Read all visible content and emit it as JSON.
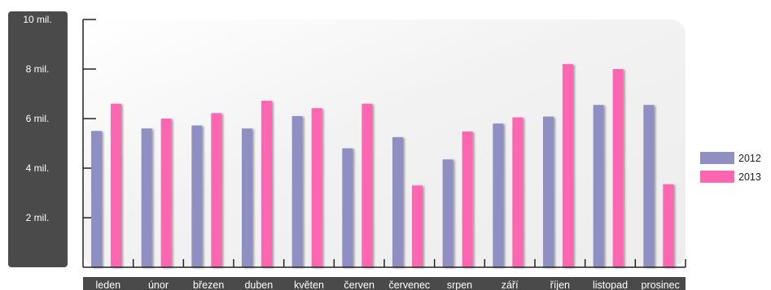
{
  "chart_data": {
    "type": "bar",
    "title": "",
    "xlabel": "",
    "ylabel": "",
    "categories": [
      "leden",
      "únor",
      "březen",
      "duben",
      "květen",
      "červen",
      "červenec",
      "srpen",
      "září",
      "říjen",
      "listopad",
      "prosinec"
    ],
    "series": [
      {
        "name": "2012",
        "color": "#8f8fc3",
        "values": [
          5.5,
          5.6,
          5.72,
          5.6,
          6.1,
          4.8,
          5.25,
          4.35,
          5.8,
          6.08,
          6.55,
          6.55
        ]
      },
      {
        "name": "2013",
        "color": "#ff66b2",
        "values": [
          6.6,
          6.0,
          6.22,
          6.72,
          6.42,
          6.6,
          3.3,
          5.48,
          6.05,
          8.2,
          8.0,
          3.35
        ]
      }
    ],
    "ylim": [
      0,
      10
    ],
    "yticks": [
      {
        "value": 2,
        "label": "2 mil."
      },
      {
        "value": 4,
        "label": "4 mil."
      },
      {
        "value": 6,
        "label": "6 mil."
      },
      {
        "value": 8,
        "label": "8 mil."
      },
      {
        "value": 10,
        "label": "10 mil."
      }
    ],
    "legend_position": "right",
    "grid": false,
    "colors": {
      "axis_panel": "#4a4a4a",
      "plot_bg": "#f5f5f5",
      "axis": "#222222"
    }
  }
}
